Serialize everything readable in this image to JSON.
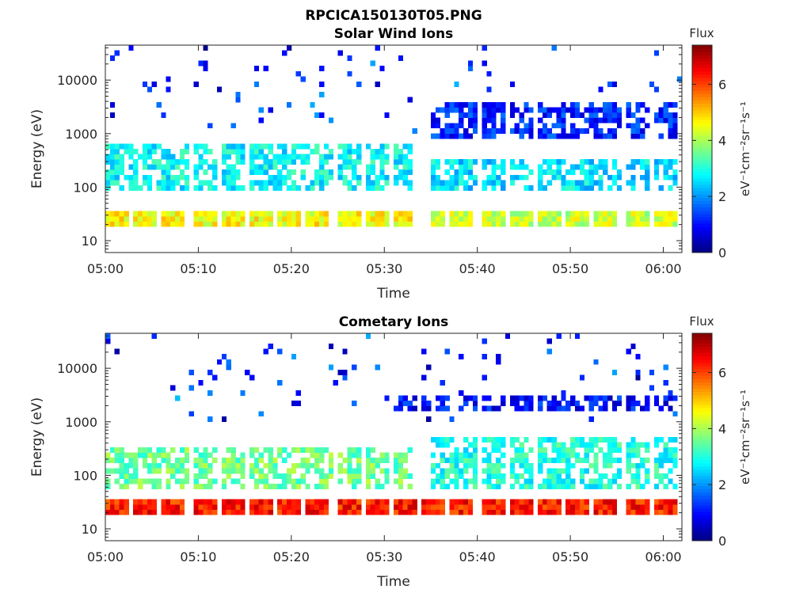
{
  "figure_title": "RPCICA150130T05.PNG",
  "colors": {
    "colormap": "jet",
    "axis": "#262626",
    "background": "#ffffff"
  },
  "chart_data": [
    {
      "type": "heatmap",
      "title": "Solar Wind Ions",
      "xlabel": "Time",
      "ylabel": "Energy (eV)",
      "xlim": [
        "05:00",
        "06:02"
      ],
      "x_tick_labels": [
        "05:00",
        "05:10",
        "05:20",
        "05:30",
        "05:40",
        "05:50",
        "06:00"
      ],
      "ylim": [
        6,
        45000
      ],
      "yscale": "log",
      "y_tick_labels": [
        "10",
        "100",
        "1000",
        "10000"
      ],
      "y_ticks": [
        10,
        100,
        1000,
        10000
      ],
      "colorbar": {
        "title": "Flux",
        "label": "eV⁻¹cm⁻²sr⁻¹s⁻¹",
        "range": [
          0,
          7.4
        ],
        "tick_labels": [
          "0",
          "2",
          "4",
          "6"
        ],
        "ticks": [
          0,
          2,
          4,
          6
        ]
      },
      "grid": false,
      "sweep_pattern": "periodic ~3-minute sweeps; early period (05:00-05:33) shows peak flux ~4-5 at ~20-30 eV and dispersed features 100-1000 eV; later period (05:35-06:02) shows continuous bands at ~20-30 eV (flux ~4.5) and ~100-300 eV (flux ~2.5-3)",
      "bands": [
        {
          "t0": "05:00",
          "t1": "05:33",
          "e_low": 18,
          "e_high": 35,
          "flux": 4.6
        },
        {
          "t0": "05:00",
          "t1": "05:33",
          "e_low": 80,
          "e_high": 700,
          "flux": 2.8
        },
        {
          "t0": "05:35",
          "t1": "06:02",
          "e_low": 18,
          "e_high": 35,
          "flux": 4.2
        },
        {
          "t0": "05:35",
          "t1": "06:02",
          "e_low": 90,
          "e_high": 350,
          "flux": 2.6
        },
        {
          "t0": "05:35",
          "t1": "06:02",
          "e_low": 900,
          "e_high": 3500,
          "flux": 1.2
        }
      ]
    },
    {
      "type": "heatmap",
      "title": "Cometary Ions",
      "xlabel": "Time",
      "ylabel": "Energy (eV)",
      "xlim": [
        "05:00",
        "06:02"
      ],
      "x_tick_labels": [
        "05:00",
        "05:10",
        "05:20",
        "05:30",
        "05:40",
        "05:50",
        "06:00"
      ],
      "ylim": [
        6,
        45000
      ],
      "yscale": "log",
      "y_tick_labels": [
        "10",
        "100",
        "1000",
        "10000"
      ],
      "y_ticks": [
        10,
        100,
        1000,
        10000
      ],
      "colorbar": {
        "title": "Flux",
        "label": "eV⁻¹cm⁻²sr⁻¹s⁻¹",
        "range": [
          0,
          7.4
        ],
        "tick_labels": [
          "0",
          "2",
          "4",
          "6"
        ],
        "ticks": [
          0,
          2,
          4,
          6
        ]
      },
      "grid": false,
      "sweep_pattern": "periodic ~3-minute sweeps; strong flux ~6-7 at ~20-35 eV throughout; broad ~2.5-4 flux 50-400 eV; sparse ~1 flux 1500-3000 eV",
      "bands": [
        {
          "t0": "05:00",
          "t1": "06:02",
          "e_low": 18,
          "e_high": 38,
          "flux": 6.3
        },
        {
          "t0": "05:00",
          "t1": "05:33",
          "e_low": 50,
          "e_high": 350,
          "flux": 3.6
        },
        {
          "t0": "05:35",
          "t1": "06:02",
          "e_low": 50,
          "e_high": 500,
          "flux": 3.0
        },
        {
          "t0": "05:30",
          "t1": "06:02",
          "e_low": 1500,
          "e_high": 3200,
          "flux": 1.0
        }
      ]
    }
  ]
}
